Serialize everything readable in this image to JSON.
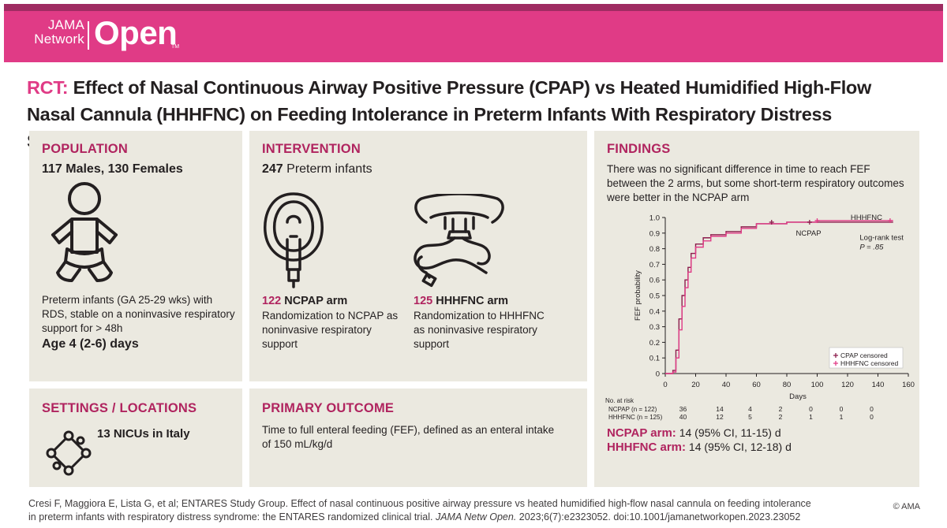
{
  "header": {
    "logo_line1": "JAMA",
    "logo_line2": "Network",
    "logo_open": "Open",
    "logo_tm": "TM"
  },
  "title": {
    "prefix": "RCT:",
    "text": "Effect of Nasal Continuous Airway Positive Pressure (CPAP) vs Heated Humidified High-Flow Nasal Cannula (HHHFNC) on Feeding Intolerance in Preterm Infants With Respiratory Distress Syndrome"
  },
  "population": {
    "label": "POPULATION",
    "headline": "117 Males, 130 Females",
    "description": "Preterm infants (GA 25-29 wks) with RDS, stable on a noninvasive respiratory support for > 48h",
    "age": "Age 4 (2-6) days"
  },
  "intervention": {
    "label": "INTERVENTION",
    "count": "247",
    "count_text": "Preterm infants",
    "arm1_n": "122",
    "arm1_name": "NCPAP arm",
    "arm1_desc": "Randomization to NCPAP as noninvasive respiratory support",
    "arm2_n": "125",
    "arm2_name": "HHHFNC arm",
    "arm2_desc": "Randomization to HHHFNC as noninvasive respiratory support"
  },
  "settings": {
    "label": "SETTINGS / LOCATIONS",
    "text": "13 NICUs in Italy"
  },
  "primary": {
    "label": "PRIMARY OUTCOME",
    "text": "Time to full enteral feeding (FEF), defined as an enteral intake of 150 mL/kg/d"
  },
  "findings": {
    "label": "FINDINGS",
    "text": "There was no significant difference in time to reach FEF between the 2 arms, but some short-term respiratory outcomes were better in the NCPAP arm",
    "ncpap_label": "NCPAP arm:",
    "ncpap_value": "14 (95% CI, 11-15) d",
    "hhhfnc_label": "HHHFNC arm:",
    "hhhfnc_value": "14 (95% CI, 12-18) d"
  },
  "chart_data": {
    "type": "line",
    "title": "",
    "xlabel": "Days",
    "ylabel": "FEF probability",
    "xlim": [
      0,
      160
    ],
    "ylim": [
      0,
      1.0
    ],
    "xticks": [
      0,
      20,
      40,
      60,
      80,
      100,
      120,
      140,
      160
    ],
    "yticks": [
      "0",
      "0.1",
      "0.2",
      "0.3",
      "0.4",
      "0.5",
      "0.6",
      "0.7",
      "0.8",
      "0.9",
      "1.0"
    ],
    "series": [
      {
        "name": "NCPAP",
        "x": [
          0,
          5,
          7,
          9,
          11,
          13,
          15,
          17,
          20,
          25,
          30,
          40,
          50,
          60,
          80,
          100,
          150
        ],
        "y": [
          0,
          0.02,
          0.15,
          0.35,
          0.5,
          0.6,
          0.68,
          0.77,
          0.83,
          0.87,
          0.89,
          0.91,
          0.94,
          0.96,
          0.97,
          0.97,
          0.97
        ]
      },
      {
        "name": "HHHFNC",
        "x": [
          0,
          5,
          7,
          9,
          11,
          13,
          15,
          17,
          20,
          25,
          30,
          40,
          50,
          60,
          80,
          100,
          150
        ],
        "y": [
          0,
          0.01,
          0.1,
          0.28,
          0.43,
          0.55,
          0.65,
          0.74,
          0.81,
          0.85,
          0.88,
          0.9,
          0.93,
          0.96,
          0.97,
          0.98,
          0.98
        ]
      }
    ],
    "series_labels": {
      "top": "HHHFNC",
      "bottom": "NCPAP"
    },
    "annotation_line1": "Log-rank test",
    "annotation_line2": "P = .85",
    "legend": [
      "CPAP censored",
      "HHHFNC censored"
    ],
    "risk_table": {
      "header": "No. at risk",
      "rows": [
        {
          "label": "NCPAP (n = 122)",
          "values": [
            "36",
            "14",
            "4",
            "2",
            "0",
            "0",
            "0"
          ]
        },
        {
          "label": "HHHFNC (n = 125)",
          "values": [
            "40",
            "12",
            "5",
            "2",
            "1",
            "1",
            "0"
          ]
        }
      ],
      "days": [
        20,
        40,
        60,
        80,
        100,
        120,
        140
      ]
    },
    "colors": {
      "ncpap": "#8c1d4c",
      "hhhfnc": "#e03b86"
    }
  },
  "citation": {
    "part1": "Cresi F, Maggiora E, Lista G, et al; ENTARES Study Group. Effect of nasal continuous positive airway pressure vs heated humidified high-flow nasal cannula on feeding intolerance in preterm infants with respiratory distress syndrome: the ENTARES randomized clinical trial.",
    "journal": "JAMA Netw Open.",
    "part2": "2023;6(7):e2323052. doi:10.1001/jamanetworkopen.2023.23052",
    "copyright": "© AMA"
  }
}
